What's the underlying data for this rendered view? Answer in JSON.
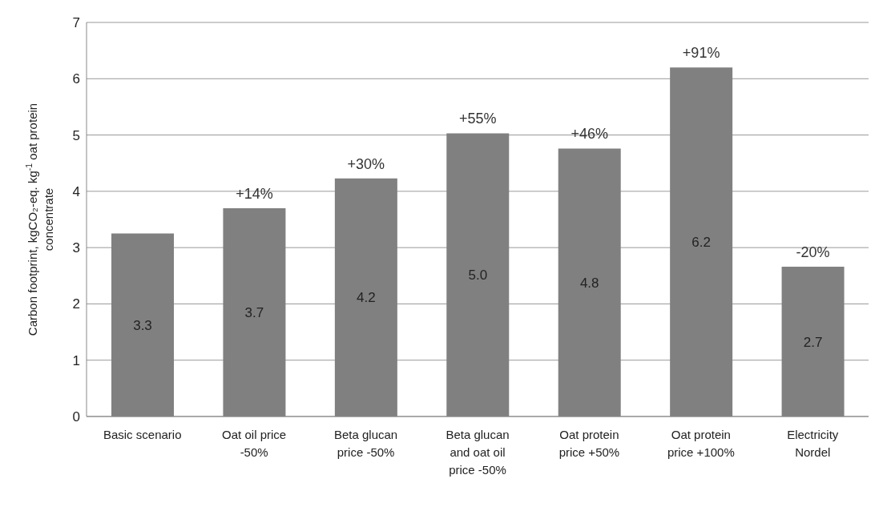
{
  "chart_data": {
    "type": "bar",
    "ylabel": "Carbon footprint, kgCO₂-eq. kg$^{-1}$ oat protein concentrate",
    "categories": [
      "Basic scenario",
      "Oat oil price -50%",
      "Beta glucan price -50%",
      "Beta glucan and oat oil price -50%",
      "Oat protein price +50%",
      "Oat protein price +100%",
      "Electricity Nordel"
    ],
    "values": [
      3.25,
      3.7,
      4.23,
      5.03,
      4.76,
      6.2,
      2.66
    ],
    "value_labels": [
      "3.3",
      "3.7",
      "4.2",
      "5.0",
      "4.8",
      "6.2",
      "2.7"
    ],
    "color": "#808080",
    "annotations": [
      {
        "text": "+14%",
        "x": "Oat oil price -50%",
        "y": 3.7
      },
      {
        "text": "+30%",
        "x": "Beta glucan price -50%",
        "y": 4.23
      },
      {
        "text": "+55%",
        "x": "Beta glucan and oat oil price -50%",
        "y": 5.03
      },
      {
        "text": "+46%",
        "x": "Oat protein price +50%",
        "y": 4.76
      },
      {
        "text": "+91%",
        "x": "Oat protein price +100%",
        "y": 6.2
      },
      {
        "text": "-20%",
        "x": "Electricity Nordel",
        "y": 2.66
      }
    ],
    "ylim": [
      0,
      7
    ],
    "yticks": [
      0,
      1,
      2,
      3,
      4,
      5,
      6,
      7
    ],
    "grid": "y",
    "legend": false
  }
}
